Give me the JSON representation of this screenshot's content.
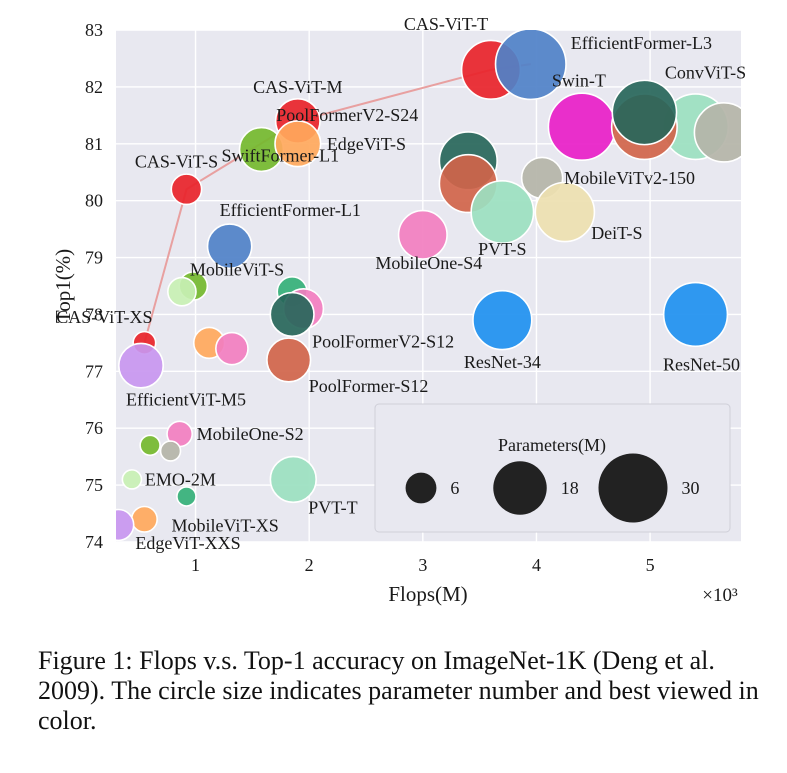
{
  "chart_data": {
    "type": "scatter",
    "xlabel": "Flops(M)",
    "ylabel": "Top1(%)",
    "x_multiplier": "×10³",
    "xlim": [
      0.3,
      5.8
    ],
    "ylim": [
      74,
      83
    ],
    "x_ticks": [
      "1",
      "2",
      "3",
      "4",
      "5"
    ],
    "y_ticks": [
      "74",
      "75",
      "76",
      "77",
      "78",
      "79",
      "80",
      "81",
      "82",
      "83"
    ],
    "grid": true,
    "background": "#e8e8f0",
    "legend": {
      "title": "Parameters(M)",
      "position": "bottom-right",
      "entries": [
        {
          "label": "6",
          "params": 6
        },
        {
          "label": "18",
          "params": 18
        },
        {
          "label": "30",
          "params": 30
        }
      ]
    },
    "pareto_line": {
      "color": "#e8a0a0",
      "points": [
        [
          0.55,
          77.5
        ],
        [
          0.92,
          80.2
        ],
        [
          1.9,
          81.4
        ],
        [
          3.6,
          82.3
        ],
        [
          3.95,
          82.4
        ]
      ]
    },
    "points": [
      {
        "label": "CAS-ViT-XS",
        "x": 0.55,
        "y": 77.5,
        "params": 3.2,
        "color": "#e8232a"
      },
      {
        "label": "CAS-ViT-S",
        "x": 0.92,
        "y": 80.2,
        "params": 5.8,
        "color": "#e8232a"
      },
      {
        "label": "CAS-ViT-M",
        "x": 1.9,
        "y": 81.4,
        "params": 12.4,
        "color": "#e8232a"
      },
      {
        "label": "CAS-ViT-T",
        "x": 3.6,
        "y": 82.3,
        "params": 21.8,
        "color": "#e8232a"
      },
      {
        "label": "EfficientFormer-L3",
        "x": 3.95,
        "y": 82.4,
        "params": 31.3,
        "color": "#4f81c8"
      },
      {
        "label": "EfficientFormer-L1",
        "x": 1.3,
        "y": 79.2,
        "params": 12.3,
        "color": "#4f81c8"
      },
      {
        "label": "SwiftFormer-L1",
        "x": 1.58,
        "y": 80.9,
        "params": 12.1,
        "color": "#74b92e"
      },
      {
        "label": "EdgeViT-S",
        "x": 1.9,
        "y": 81.0,
        "params": 13.1,
        "color": "#ffa85c"
      },
      {
        "label": "Swin-T",
        "x": 4.4,
        "y": 81.3,
        "params": 28.3,
        "color": "#e81ec8"
      },
      {
        "label": "ConvViT-S",
        "x": 5.4,
        "y": 81.3,
        "params": 27.0,
        "color": "#9be0c0"
      },
      {
        "label": "",
        "x": 5.65,
        "y": 81.2,
        "params": 22.0,
        "color": "#b4b4a8"
      },
      {
        "label": "",
        "x": 4.95,
        "y": 81.3,
        "params": 27.0,
        "color": "#d0644a"
      },
      {
        "label": "",
        "x": 4.95,
        "y": 81.55,
        "params": 26.0,
        "color": "#27665a"
      },
      {
        "label": "PoolFormerV2-S24",
        "x": 3.4,
        "y": 80.7,
        "params": 21.0,
        "color": "#27665a"
      },
      {
        "label": "",
        "x": 3.4,
        "y": 80.3,
        "params": 21.0,
        "color": "#d0644a"
      },
      {
        "label": "MobileViTv2-150",
        "x": 4.05,
        "y": 80.4,
        "params": 10.6,
        "color": "#b4b4a8"
      },
      {
        "label": "PVT-S",
        "x": 3.7,
        "y": 79.8,
        "params": 24.5,
        "color": "#9be0c0"
      },
      {
        "label": "DeiT-S",
        "x": 4.25,
        "y": 79.8,
        "params": 22.0,
        "color": "#ede0b0"
      },
      {
        "label": "MobileOne-S4",
        "x": 3.0,
        "y": 79.4,
        "params": 14.8,
        "color": "#f27ec0"
      },
      {
        "label": "MobileViT-S",
        "x": 1.85,
        "y": 78.4,
        "params": 5.6,
        "color": "#34b078"
      },
      {
        "label": "",
        "x": 1.95,
        "y": 78.1,
        "params": 10.0,
        "color": "#f27ec0"
      },
      {
        "label": "PoolFormerV2-S12",
        "x": 1.85,
        "y": 78.0,
        "params": 12.0,
        "color": "#27665a"
      },
      {
        "label": "PoolFormer-S12",
        "x": 1.82,
        "y": 77.2,
        "params": 12.0,
        "color": "#d0644a"
      },
      {
        "label": "ResNet-34",
        "x": 3.7,
        "y": 77.9,
        "params": 21.8,
        "color": "#1e90f0"
      },
      {
        "label": "ResNet-50",
        "x": 5.4,
        "y": 78.0,
        "params": 25.6,
        "color": "#1e90f0"
      },
      {
        "label": "",
        "x": 0.98,
        "y": 78.5,
        "params": 5.0,
        "color": "#74b92e"
      },
      {
        "label": "",
        "x": 0.88,
        "y": 78.4,
        "params": 5.0,
        "color": "#c8f0b4"
      },
      {
        "label": "",
        "x": 1.12,
        "y": 77.5,
        "params": 6.0,
        "color": "#ffa85c"
      },
      {
        "label": "",
        "x": 1.32,
        "y": 77.4,
        "params": 6.5,
        "color": "#f27ec0"
      },
      {
        "label": "EfficientViT-M5",
        "x": 0.52,
        "y": 77.1,
        "params": 12.4,
        "color": "#c896f0"
      },
      {
        "label": "MobileOne-S2",
        "x": 0.86,
        "y": 75.9,
        "params": 4.0,
        "color": "#f27ec0"
      },
      {
        "label": "",
        "x": 0.78,
        "y": 75.6,
        "params": 2.5,
        "color": "#b4b4a8"
      },
      {
        "label": "",
        "x": 0.6,
        "y": 75.7,
        "params": 2.5,
        "color": "#74b92e"
      },
      {
        "label": "EMO-2M",
        "x": 0.44,
        "y": 75.1,
        "params": 2.3,
        "color": "#c8f0b4"
      },
      {
        "label": "MobileViT-XS",
        "x": 0.92,
        "y": 74.8,
        "params": 2.3,
        "color": "#34b078"
      },
      {
        "label": "PVT-T",
        "x": 1.86,
        "y": 75.1,
        "params": 13.2,
        "color": "#9be0c0"
      },
      {
        "label": "EdgeViT-XXS",
        "x": 0.55,
        "y": 74.4,
        "params": 4.1,
        "color": "#ffa85c"
      },
      {
        "label": "",
        "x": 0.32,
        "y": 74.3,
        "params": 6.0,
        "color": "#c896f0"
      }
    ]
  },
  "caption": "Figure 1: Flops v.s. Top-1 accuracy on ImageNet-1K (Deng et al. 2009). The circle size indicates parameter number and best viewed in color."
}
